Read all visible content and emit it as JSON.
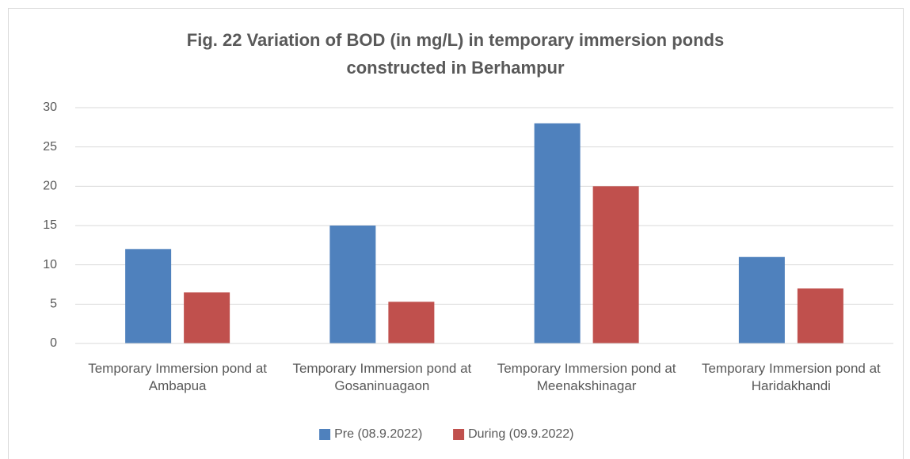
{
  "chart_data": {
    "type": "bar",
    "title": [
      "Fig. 22     Variation of BOD (in mg/L) in temporary immersion ponds",
      "constructed in Berhampur"
    ],
    "categories": [
      "Temporary Immersion pond at Ambapua",
      "Temporary Immersion pond at Gosaninuagaon",
      "Temporary Immersion pond at Meenakshinagar",
      "Temporary Immersion pond at Haridakhandi"
    ],
    "series": [
      {
        "name": "Pre (08.9.2022)",
        "color": "#4f81bd",
        "values": [
          12,
          15,
          28,
          11
        ]
      },
      {
        "name": "During (09.9.2022)",
        "color": "#c0504d",
        "values": [
          6.5,
          5.3,
          20,
          7
        ]
      }
    ],
    "ylim": [
      0,
      30
    ],
    "yticks": [
      0,
      5,
      10,
      15,
      20,
      25,
      30
    ],
    "grid": true,
    "legend": "bottom"
  }
}
